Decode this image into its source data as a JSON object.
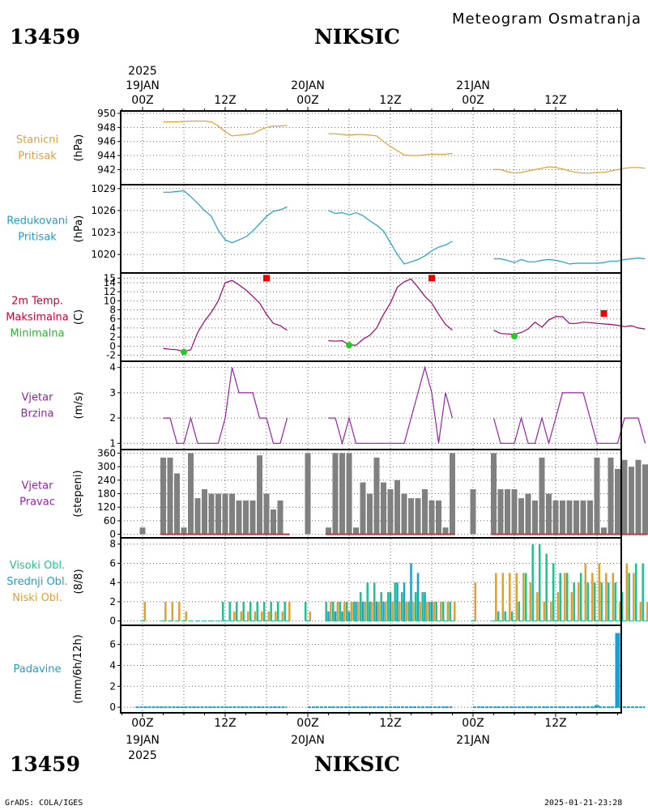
{
  "header": {
    "station_id": "13459",
    "station_name": "NIKSIC",
    "title": "Meteogram Osmatranja"
  },
  "footer": {
    "station_id": "13459",
    "station_name": "NIKSIC",
    "credit": "GrADS: COLA/IGES",
    "timestamp": "2025-01-21-23:28"
  },
  "time_axis": {
    "year": "2025",
    "ticks": [
      {
        "label": "00Z",
        "date": "19JAN",
        "hour": 0
      },
      {
        "label": "12Z",
        "date": "",
        "hour": 12
      },
      {
        "label": "00Z",
        "date": "20JAN",
        "hour": 24
      },
      {
        "label": "12Z",
        "date": "",
        "hour": 36
      },
      {
        "label": "00Z",
        "date": "21JAN",
        "hour": 48
      },
      {
        "label": "12Z",
        "date": "",
        "hour": 60
      }
    ]
  },
  "chart_data": [
    {
      "id": "stanicni",
      "type": "line",
      "labels": [
        "Stanicni",
        "Pritisak"
      ],
      "label_colors": [
        "#e0a030",
        "#e0a030"
      ],
      "unit": "(hPa)",
      "color": "#e0a030",
      "ylim": [
        940.2,
        950
      ],
      "yticks": [
        942,
        944,
        946,
        948,
        950
      ],
      "segments": [
        {
          "x": [
            3,
            5,
            7,
            9,
            10,
            11,
            12,
            13,
            14,
            15,
            16,
            17,
            18,
            19,
            20,
            21
          ],
          "y": [
            948.8,
            948.8,
            948.9,
            948.9,
            948.8,
            948.2,
            947.4,
            946.8,
            946.9,
            947,
            947.1,
            947.6,
            948,
            948.2,
            948.2,
            948.3
          ]
        },
        {
          "x": [
            27,
            28,
            29,
            30,
            31,
            32,
            33,
            34,
            35,
            36,
            37,
            38,
            39,
            40,
            41,
            42,
            43,
            44,
            45
          ],
          "y": [
            947.1,
            947.1,
            947,
            946.9,
            947,
            947,
            946.9,
            946.8,
            946,
            945.3,
            944.7,
            944.1,
            944,
            944,
            944.1,
            944.2,
            944.2,
            944.2,
            944.3
          ]
        },
        {
          "x": [
            51,
            52,
            53,
            54,
            55,
            56,
            57,
            58,
            59,
            60,
            61,
            62,
            63,
            64,
            65,
            66,
            67,
            68,
            69,
            70,
            71,
            72,
            73
          ],
          "y": [
            942,
            942,
            941.7,
            941.5,
            941.6,
            941.8,
            942,
            942.2,
            942.4,
            942.3,
            942.1,
            941.8,
            941.6,
            941.5,
            941.5,
            941.6,
            941.6,
            941.8,
            942,
            942.2,
            942.3,
            942.3,
            942.2
          ]
        }
      ]
    },
    {
      "id": "redukovani",
      "type": "line",
      "labels": [
        "Redukovani",
        "Pritisak"
      ],
      "label_colors": [
        "#1aa0d0",
        "#1aa0d0"
      ],
      "unit": "(hPa)",
      "color": "#1aa0d0",
      "ylim": [
        1017.8,
        1029.2
      ],
      "yticks": [
        1020,
        1023,
        1026,
        1029
      ],
      "segments": [
        {
          "x": [
            3,
            4,
            5,
            6,
            7,
            8,
            9,
            10,
            11,
            12,
            13,
            14,
            15,
            16,
            17,
            18,
            19,
            20,
            21
          ],
          "y": [
            1028.5,
            1028.5,
            1028.6,
            1028.7,
            1027.9,
            1027,
            1026,
            1025.2,
            1023.3,
            1022,
            1021.6,
            1022,
            1022.4,
            1023.2,
            1024.2,
            1025.2,
            1025.9,
            1026.1,
            1026.5
          ]
        },
        {
          "x": [
            27,
            28,
            29,
            30,
            31,
            32,
            33,
            34,
            35,
            36,
            37,
            38,
            39,
            40,
            41,
            42,
            43,
            44,
            45
          ],
          "y": [
            1026,
            1025.6,
            1025.7,
            1025.4,
            1025.7,
            1025.3,
            1024.6,
            1024,
            1023.2,
            1021.6,
            1020,
            1018.7,
            1019,
            1019.3,
            1019.8,
            1020.5,
            1021,
            1021.3,
            1021.8
          ]
        },
        {
          "x": [
            51,
            52,
            53,
            54,
            55,
            56,
            57,
            58,
            59,
            60,
            61,
            62,
            63,
            64,
            65,
            66,
            67,
            68,
            69,
            70,
            71,
            72,
            73
          ],
          "y": [
            1019.4,
            1019.4,
            1019.2,
            1018.9,
            1019.3,
            1019,
            1019,
            1019.2,
            1019.3,
            1019.2,
            1019,
            1018.7,
            1018.8,
            1018.8,
            1018.8,
            1018.8,
            1018.9,
            1019.1,
            1019.1,
            1019.3,
            1019.4,
            1019.5,
            1019.4
          ]
        }
      ]
    },
    {
      "id": "temp",
      "type": "line",
      "labels": [
        "2m Temp.",
        "Maksimalna",
        "Minimalna"
      ],
      "label_colors": [
        "#cc0033",
        "#cc0033",
        "#22bb22"
      ],
      "unit": "(C)",
      "color": "#a00070",
      "ylim": [
        -2.8,
        15.6
      ],
      "yticks": [
        -2,
        0,
        2,
        4,
        6,
        8,
        10,
        12,
        14,
        15
      ],
      "segments": [
        {
          "x": [
            3,
            4,
            5,
            6,
            7,
            8,
            9,
            10,
            11,
            12,
            13,
            14,
            15,
            16,
            17,
            18,
            19,
            20,
            21
          ],
          "y": [
            -0.5,
            -0.7,
            -0.8,
            -1.2,
            -0.8,
            3,
            5.5,
            7.5,
            10,
            14,
            14.5,
            13.5,
            12.4,
            11,
            9.5,
            7,
            5,
            4.5,
            3.5
          ]
        },
        {
          "x": [
            27,
            28,
            29,
            30,
            31,
            32,
            33,
            34,
            35,
            36,
            37,
            38,
            39,
            40,
            41,
            42,
            43,
            44,
            45
          ],
          "y": [
            1.2,
            1.1,
            1.2,
            0.3,
            0.2,
            1.5,
            2.4,
            4,
            7,
            9.5,
            13,
            14.2,
            14.8,
            13,
            11,
            9.5,
            7,
            4.8,
            3.5
          ]
        },
        {
          "x": [
            51,
            52,
            53,
            54,
            55,
            56,
            57,
            58,
            59,
            60,
            61,
            62,
            63,
            64,
            65,
            66,
            67,
            68,
            69,
            70,
            71,
            72,
            73
          ],
          "y": [
            3.5,
            2.8,
            2.7,
            2.6,
            3,
            3.8,
            5.3,
            4.2,
            5.8,
            6.5,
            6.5,
            5,
            5,
            5.3,
            5.2,
            5,
            4.9,
            4.8,
            4.6,
            4.3,
            4.5,
            4,
            3.8
          ]
        }
      ],
      "max_points": {
        "color": "#ee0000",
        "x": [
          18,
          42,
          67
        ],
        "y": [
          15,
          15,
          7.2
        ]
      },
      "min_points": {
        "color": "#22cc22",
        "x": [
          6,
          30,
          54
        ],
        "y": [
          -1.3,
          0.2,
          2.2
        ]
      }
    },
    {
      "id": "wind_speed",
      "type": "line",
      "labels": [
        "Vjetar",
        "Brzina"
      ],
      "label_colors": [
        "#9922aa",
        "#9922aa"
      ],
      "unit": "(m/s)",
      "color": "#9922aa",
      "ylim": [
        0.85,
        4.15
      ],
      "yticks": [
        1,
        2,
        3,
        4
      ],
      "segments": [
        {
          "x": [
            3,
            4,
            5,
            6,
            7,
            8,
            9,
            10,
            11,
            12,
            13,
            14,
            15,
            16,
            17,
            18,
            19,
            20,
            21
          ],
          "y": [
            2,
            2,
            1,
            1,
            2,
            1,
            1,
            1,
            1,
            2,
            4,
            3,
            3,
            3,
            2,
            2,
            1,
            1,
            2
          ]
        },
        {
          "x": [
            27,
            28,
            29,
            30,
            31,
            32,
            33,
            34,
            35,
            36,
            37,
            38,
            39,
            40,
            41,
            42,
            43,
            44,
            45
          ],
          "y": [
            2,
            2,
            1,
            2,
            1,
            1,
            1,
            1,
            1,
            1,
            1,
            1,
            2,
            3,
            4,
            3,
            1,
            3,
            2
          ]
        },
        {
          "x": [
            51,
            52,
            53,
            54,
            55,
            56,
            57,
            58,
            59,
            60,
            61,
            62,
            63,
            64,
            65,
            66,
            67,
            68,
            69,
            70,
            71,
            72,
            73
          ],
          "y": [
            2,
            1,
            1,
            1,
            2,
            1,
            1,
            2,
            1,
            2,
            3,
            3,
            3,
            3,
            2,
            1,
            1,
            1,
            1,
            2,
            2,
            2,
            1
          ]
        }
      ]
    },
    {
      "id": "wind_dir",
      "type": "bar",
      "labels": [
        "Vjetar",
        "Pravac"
      ],
      "label_colors": [
        "#9922aa",
        "#9922aa"
      ],
      "unit": "(stepeni)",
      "color": "#808080",
      "baseline_color": "#cc3333",
      "ylim": [
        -5,
        365
      ],
      "yticks": [
        0,
        60,
        120,
        180,
        240,
        300,
        360
      ],
      "x": [
        0,
        3,
        4,
        5,
        6,
        7,
        8,
        9,
        10,
        11,
        12,
        13,
        14,
        15,
        16,
        17,
        18,
        19,
        20,
        21,
        24,
        27,
        28,
        29,
        30,
        31,
        32,
        33,
        34,
        35,
        36,
        37,
        38,
        39,
        40,
        41,
        42,
        43,
        44,
        45,
        48,
        51,
        52,
        53,
        54,
        55,
        56,
        57,
        58,
        59,
        60,
        61,
        62,
        63,
        64,
        65,
        66,
        67,
        68,
        69,
        70,
        71,
        72,
        73
      ],
      "values": [
        30,
        340,
        340,
        270,
        30,
        360,
        160,
        200,
        180,
        180,
        180,
        180,
        150,
        150,
        150,
        350,
        180,
        110,
        150,
        0,
        360,
        30,
        360,
        360,
        360,
        30,
        230,
        180,
        340,
        230,
        200,
        240,
        180,
        160,
        160,
        200,
        150,
        150,
        30,
        360,
        200,
        360,
        200,
        200,
        200,
        160,
        180,
        150,
        340,
        180,
        150,
        150,
        150,
        150,
        150,
        150,
        340,
        30,
        340,
        290,
        330,
        300,
        330,
        310
      ],
      "null_bars": [
        1,
        2
      ]
    },
    {
      "id": "clouds",
      "type": "bar",
      "labels": [
        "Visoki Obl.",
        "Srednji Obl.",
        "Niski Obl."
      ],
      "label_colors": [
        "#22c090",
        "#1aa0d0",
        "#e0a030"
      ],
      "unit": "(8/8)",
      "ylim": [
        -0.2,
        8.4
      ],
      "yticks": [
        0,
        2,
        4,
        6,
        8
      ],
      "x": [
        0,
        3,
        4,
        5,
        6,
        7,
        8,
        9,
        10,
        11,
        12,
        13,
        14,
        15,
        16,
        17,
        18,
        19,
        20,
        21,
        24,
        27,
        28,
        29,
        30,
        31,
        32,
        33,
        34,
        35,
        36,
        37,
        38,
        39,
        40,
        41,
        42,
        43,
        44,
        45,
        48,
        51,
        52,
        53,
        54,
        55,
        56,
        57,
        58,
        59,
        60,
        61,
        62,
        63,
        64,
        65,
        66,
        67,
        68,
        69,
        70,
        71,
        72,
        73
      ],
      "series": [
        {
          "name": "Visoki Obl.",
          "color": "#22c090",
          "values": [
            0,
            0,
            0,
            0,
            0,
            0,
            0,
            0,
            0,
            0,
            2,
            2,
            2,
            2,
            2,
            2,
            2,
            2,
            2,
            2,
            2,
            2,
            2,
            2,
            2,
            2,
            3,
            4,
            4,
            3,
            3,
            4,
            3,
            2,
            3,
            3,
            2,
            2,
            2,
            2,
            0,
            0,
            1,
            1,
            1,
            2,
            5,
            8,
            8,
            7,
            6,
            5,
            5,
            4,
            5,
            4,
            4,
            4,
            4,
            4,
            3,
            5,
            6,
            6
          ]
        },
        {
          "name": "Srednji Obl.",
          "color": "#1aa0d0",
          "values": [
            0,
            0,
            0,
            0,
            0,
            0,
            0,
            0,
            0,
            0,
            0,
            0,
            0,
            0,
            0,
            0,
            0,
            0,
            0,
            0,
            0,
            1,
            1,
            1,
            1,
            2,
            2,
            2,
            2,
            2,
            3,
            4,
            4,
            6,
            5,
            3,
            2,
            0,
            0,
            0,
            0,
            0,
            0,
            0,
            0,
            0,
            0,
            0,
            0,
            0,
            0,
            0,
            0,
            0,
            0,
            0,
            0,
            0,
            0,
            0,
            0,
            0,
            0,
            0
          ]
        },
        {
          "name": "Niski Obl.",
          "color": "#e0a030",
          "values": [
            2,
            2,
            2,
            2,
            1,
            0,
            0,
            0,
            0,
            0,
            0,
            1,
            1,
            1,
            1,
            1,
            1,
            1,
            1,
            2,
            1,
            2,
            2,
            2,
            2,
            2,
            2,
            2,
            2,
            2,
            2,
            2,
            2,
            2,
            2,
            2,
            2,
            2,
            2,
            2,
            4,
            5,
            5,
            5,
            5,
            5,
            4,
            3,
            2,
            2,
            3,
            5,
            3,
            4,
            6,
            5,
            6,
            5,
            5,
            2,
            6,
            5,
            2,
            2
          ]
        }
      ]
    },
    {
      "id": "precip",
      "type": "bar",
      "labels": [
        "Padavine"
      ],
      "label_colors": [
        "#1aa0d0"
      ],
      "unit": "(mm/6h/12h)",
      "color": "#1aa0d0",
      "ylim": [
        -0.3,
        7.6
      ],
      "yticks": [
        0,
        2,
        4,
        6
      ],
      "x": [
        66,
        69
      ],
      "values": [
        0.2,
        7.1
      ]
    }
  ]
}
